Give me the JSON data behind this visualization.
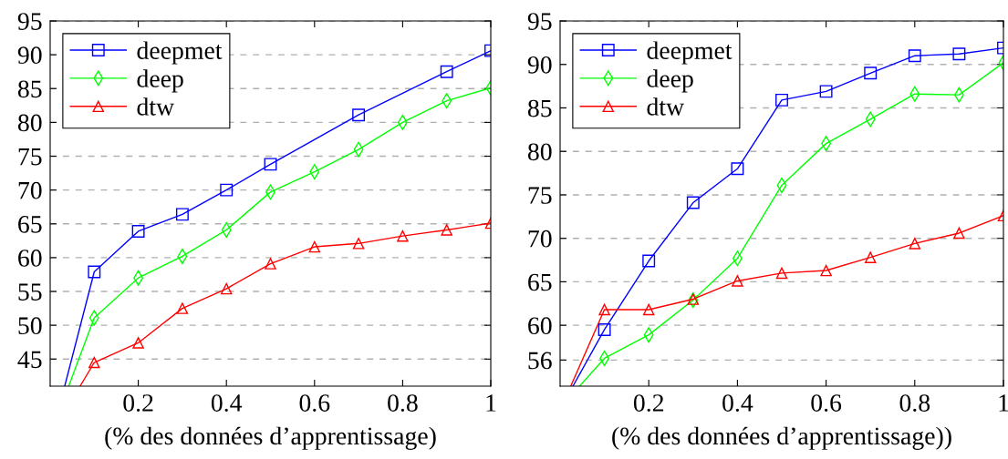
{
  "chart_data": [
    {
      "type": "line",
      "xlabel": "(% des données d’apprentissage)",
      "xlim": [
        0,
        1
      ],
      "ylim": [
        41,
        95
      ],
      "xticks": [
        0.2,
        0.4,
        0.6,
        0.8,
        1
      ],
      "yticks": [
        45,
        50,
        55,
        60,
        65,
        70,
        75,
        80,
        85,
        90,
        95
      ],
      "grid": "y",
      "legend": "top left",
      "series": [
        {
          "name": "deepmet",
          "color": "#0000ff",
          "marker": "square",
          "x": [
            0.033,
            0.1,
            0.2,
            0.3,
            0.4,
            0.5,
            0.7,
            0.9,
            1
          ],
          "values": [
            41,
            57.9,
            63.9,
            66.4,
            70.0,
            73.8,
            81.1,
            87.5,
            90.6
          ]
        },
        {
          "name": "deep",
          "color": "#00ff00",
          "marker": "diamond",
          "x": [
            0.042,
            0.1,
            0.2,
            0.3,
            0.4,
            0.5,
            0.6,
            0.7,
            0.8,
            0.9,
            1
          ],
          "values": [
            41,
            51.1,
            57.0,
            60.2,
            64.1,
            69.7,
            72.7,
            76.0,
            80.0,
            83.2,
            85.1
          ]
        },
        {
          "name": "dtw",
          "color": "#ff0000",
          "marker": "triangle",
          "x": [
            0.068,
            0.1,
            0.2,
            0.3,
            0.4,
            0.5,
            0.6,
            0.7,
            0.8,
            0.9,
            1
          ],
          "values": [
            41,
            44.5,
            47.4,
            52.5,
            55.4,
            59.1,
            61.6,
            62.1,
            63.2,
            64.1,
            65.1
          ]
        }
      ]
    },
    {
      "type": "line",
      "xlabel": "(% des données d’apprentissage))",
      "xlim": [
        0,
        1
      ],
      "ylim": [
        53,
        95
      ],
      "xticks": [
        0.2,
        0.4,
        0.6,
        0.8,
        1
      ],
      "yticks": [
        56,
        60,
        65,
        70,
        75,
        80,
        85,
        90,
        95
      ],
      "grid": "y",
      "legend": "top left",
      "series": [
        {
          "name": "deepmet",
          "color": "#0000ff",
          "marker": "square",
          "x": [
            0.029,
            0.1,
            0.2,
            0.3,
            0.4,
            0.5,
            0.6,
            0.7,
            0.8,
            0.9,
            1
          ],
          "values": [
            53,
            59.5,
            67.4,
            74.1,
            78.0,
            85.9,
            86.9,
            89.0,
            91.0,
            91.2,
            91.9
          ]
        },
        {
          "name": "deep",
          "color": "#00ff00",
          "marker": "diamond",
          "x": [
            0.044,
            0.1,
            0.2,
            0.3,
            0.4,
            0.5,
            0.6,
            0.7,
            0.8,
            0.9,
            1
          ],
          "values": [
            53,
            56.2,
            58.9,
            62.9,
            67.7,
            76.1,
            80.9,
            83.7,
            86.6,
            86.5,
            90.2
          ]
        },
        {
          "name": "dtw",
          "color": "#ff0000",
          "marker": "triangle",
          "x": [
            0.024,
            0.1,
            0.2,
            0.3,
            0.4,
            0.5,
            0.6,
            0.7,
            0.8,
            0.9,
            1
          ],
          "values": [
            53,
            61.8,
            61.8,
            63.0,
            65.1,
            66.0,
            66.3,
            67.8,
            69.4,
            70.6,
            72.6
          ]
        }
      ]
    }
  ]
}
